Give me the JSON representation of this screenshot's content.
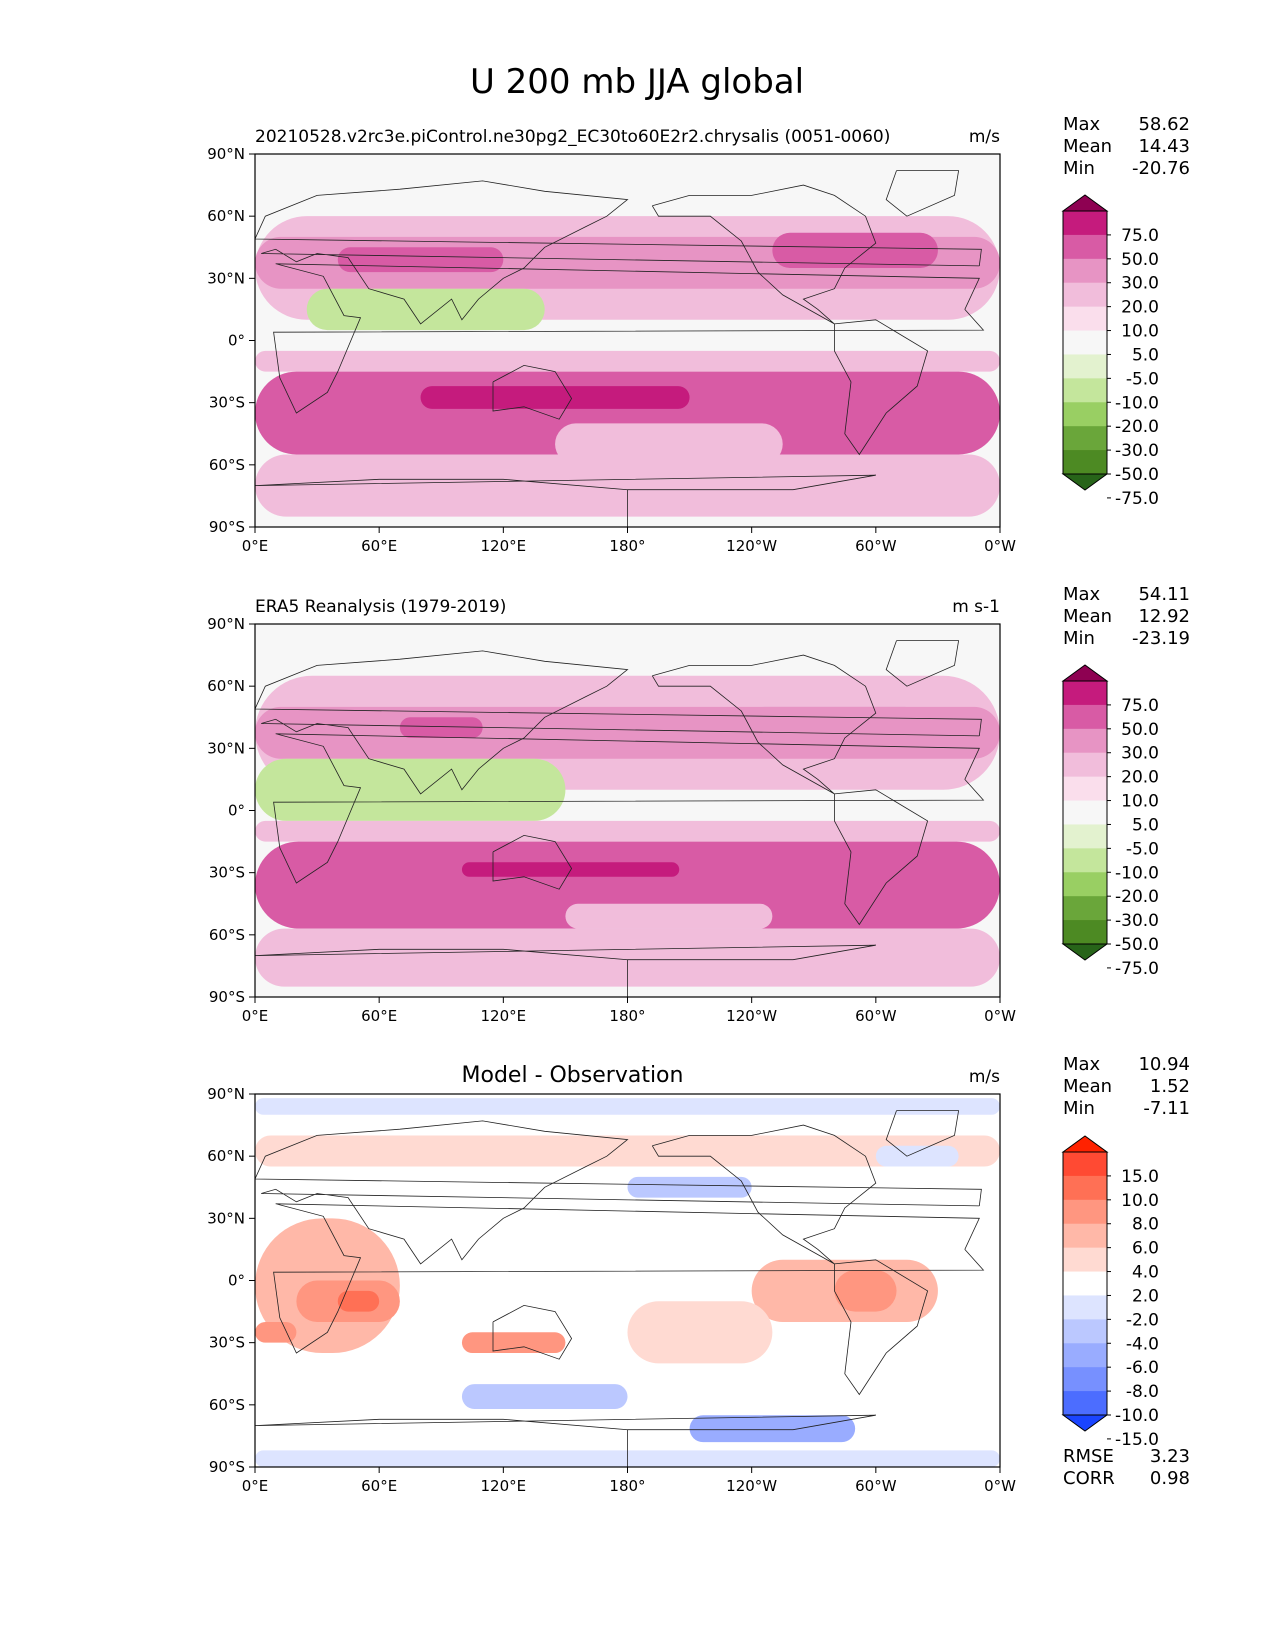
{
  "figure_title": "U 200 mb JJA global",
  "chart_data": [
    {
      "type": "heatmap",
      "title": "20210528.v2rc3e.piControl.ne30pg2_EC30to60E2r2.chrysalis (0051-0060)",
      "units": "m/s",
      "stats": [
        {
          "label": "Max",
          "value": "58.62"
        },
        {
          "label": "Mean",
          "value": "14.43"
        },
        {
          "label": "Min",
          "value": "-20.76"
        }
      ],
      "colorbar": {
        "levels": [
          "75.0",
          "50.0",
          "30.0",
          "20.0",
          "10.0",
          "5.0",
          "-5.0",
          "-10.0",
          "-20.0",
          "-30.0",
          "-50.0",
          "-75.0"
        ],
        "colors": [
          "#8e0152",
          "#c51b7d",
          "#d85ba5",
          "#e794c4",
          "#f1bddb",
          "#fadeec",
          "#f7f7f7",
          "#e3f2cf",
          "#c4e69c",
          "#99cf63",
          "#6aa63a",
          "#4d8a23",
          "#276419"
        ]
      },
      "xticks": [
        "0°E",
        "60°E",
        "120°E",
        "180°",
        "120°W",
        "60°W",
        "0°W"
      ],
      "yticks": [
        "90°N",
        "60°N",
        "30°N",
        "0°",
        "30°S",
        "60°S",
        "90°S"
      ],
      "xlim": [
        0,
        360
      ],
      "ylim": [
        -90,
        90
      ],
      "regions": [
        {
          "lon": [
            0,
            360
          ],
          "lat": [
            10,
            60
          ],
          "level": 4
        },
        {
          "lon": [
            0,
            360
          ],
          "lat": [
            25,
            50
          ],
          "level": 3
        },
        {
          "lon": [
            40,
            120
          ],
          "lat": [
            33,
            45
          ],
          "level": 2
        },
        {
          "lon": [
            250,
            330
          ],
          "lat": [
            35,
            52
          ],
          "level": 2
        },
        {
          "lon": [
            25,
            140
          ],
          "lat": [
            5,
            25
          ],
          "level": 8
        },
        {
          "lon": [
            0,
            360
          ],
          "lat": [
            -15,
            -5
          ],
          "level": 4
        },
        {
          "lon": [
            0,
            360
          ],
          "lat": [
            -55,
            -15
          ],
          "level": 2
        },
        {
          "lon": [
            80,
            210
          ],
          "lat": [
            -33,
            -22
          ],
          "level": 1
        },
        {
          "lon": [
            145,
            255
          ],
          "lat": [
            -60,
            -40
          ],
          "level": 4
        },
        {
          "lon": [
            0,
            360
          ],
          "lat": [
            -85,
            -55
          ],
          "level": 4
        }
      ]
    },
    {
      "type": "heatmap",
      "title": "ERA5 Reanalysis (1979-2019)",
      "units": "m s-1",
      "stats": [
        {
          "label": "Max",
          "value": "54.11"
        },
        {
          "label": "Mean",
          "value": "12.92"
        },
        {
          "label": "Min",
          "value": "-23.19"
        }
      ],
      "colorbar": {
        "levels": [
          "75.0",
          "50.0",
          "30.0",
          "20.0",
          "10.0",
          "5.0",
          "-5.0",
          "-10.0",
          "-20.0",
          "-30.0",
          "-50.0",
          "-75.0"
        ],
        "colors": [
          "#8e0152",
          "#c51b7d",
          "#d85ba5",
          "#e794c4",
          "#f1bddb",
          "#fadeec",
          "#f7f7f7",
          "#e3f2cf",
          "#c4e69c",
          "#99cf63",
          "#6aa63a",
          "#4d8a23",
          "#276419"
        ]
      },
      "xticks": [
        "0°E",
        "60°E",
        "120°E",
        "180°",
        "120°W",
        "60°W",
        "0°W"
      ],
      "yticks": [
        "90°N",
        "60°N",
        "30°N",
        "0°",
        "30°S",
        "60°S",
        "90°S"
      ],
      "xlim": [
        0,
        360
      ],
      "ylim": [
        -90,
        90
      ],
      "regions": [
        {
          "lon": [
            0,
            360
          ],
          "lat": [
            10,
            65
          ],
          "level": 4
        },
        {
          "lon": [
            0,
            360
          ],
          "lat": [
            25,
            50
          ],
          "level": 3
        },
        {
          "lon": [
            70,
            110
          ],
          "lat": [
            35,
            45
          ],
          "level": 2
        },
        {
          "lon": [
            240,
            320
          ],
          "lat": [
            38,
            50
          ],
          "level": 3
        },
        {
          "lon": [
            0,
            150
          ],
          "lat": [
            -5,
            25
          ],
          "level": 8
        },
        {
          "lon": [
            0,
            360
          ],
          "lat": [
            -15,
            -5
          ],
          "level": 4
        },
        {
          "lon": [
            0,
            360
          ],
          "lat": [
            -57,
            -15
          ],
          "level": 2
        },
        {
          "lon": [
            100,
            205
          ],
          "lat": [
            -32,
            -25
          ],
          "level": 1
        },
        {
          "lon": [
            150,
            250
          ],
          "lat": [
            -57,
            -45
          ],
          "level": 4
        },
        {
          "lon": [
            0,
            360
          ],
          "lat": [
            -85,
            -57
          ],
          "level": 4
        }
      ]
    },
    {
      "type": "heatmap",
      "title": "Model - Observation",
      "units": "m/s",
      "stats": [
        {
          "label": "Max",
          "value": "10.94"
        },
        {
          "label": "Mean",
          "value": "1.52"
        },
        {
          "label": "Min",
          "value": "-7.11"
        }
      ],
      "extra_stats": [
        {
          "label": "RMSE",
          "value": "3.23"
        },
        {
          "label": "CORR",
          "value": "0.98"
        }
      ],
      "colorbar": {
        "levels": [
          "15.0",
          "10.0",
          "8.0",
          "6.0",
          "4.0",
          "2.0",
          "-2.0",
          "-4.0",
          "-6.0",
          "-8.0",
          "-10.0",
          "-15.0"
        ],
        "colors": [
          "#ff2200",
          "#ff4a33",
          "#ff7055",
          "#ff9680",
          "#ffb8a8",
          "#ffdad2",
          "#ffffff",
          "#dde4ff",
          "#bbc8ff",
          "#99acff",
          "#7790ff",
          "#4c6dff",
          "#1a44ff"
        ]
      },
      "xticks": [
        "0°E",
        "60°E",
        "120°E",
        "180°",
        "120°W",
        "60°W",
        "0°W"
      ],
      "yticks": [
        "90°N",
        "60°N",
        "30°N",
        "0°",
        "30°S",
        "60°S",
        "90°S"
      ],
      "xlim": [
        0,
        360
      ],
      "ylim": [
        -90,
        90
      ],
      "regions": [
        {
          "lon": [
            0,
            360
          ],
          "lat": [
            80,
            88
          ],
          "level": 7
        },
        {
          "lon": [
            0,
            360
          ],
          "lat": [
            55,
            70
          ],
          "level": 5
        },
        {
          "lon": [
            0,
            70
          ],
          "lat": [
            -35,
            30
          ],
          "level": 4
        },
        {
          "lon": [
            20,
            70
          ],
          "lat": [
            -20,
            0
          ],
          "level": 3
        },
        {
          "lon": [
            40,
            60
          ],
          "lat": [
            -15,
            -5
          ],
          "level": 2
        },
        {
          "lon": [
            240,
            330
          ],
          "lat": [
            -20,
            10
          ],
          "level": 4
        },
        {
          "lon": [
            280,
            310
          ],
          "lat": [
            -15,
            5
          ],
          "level": 3
        },
        {
          "lon": [
            0,
            20
          ],
          "lat": [
            -30,
            -20
          ],
          "level": 3
        },
        {
          "lon": [
            100,
            150
          ],
          "lat": [
            -35,
            -25
          ],
          "level": 3
        },
        {
          "lon": [
            180,
            250
          ],
          "lat": [
            -40,
            -10
          ],
          "level": 5
        },
        {
          "lon": [
            100,
            180
          ],
          "lat": [
            -62,
            -50
          ],
          "level": 8
        },
        {
          "lon": [
            210,
            290
          ],
          "lat": [
            -78,
            -65
          ],
          "level": 9
        },
        {
          "lon": [
            0,
            360
          ],
          "lat": [
            -90,
            -82
          ],
          "level": 7
        },
        {
          "lon": [
            180,
            240
          ],
          "lat": [
            40,
            50
          ],
          "level": 8
        },
        {
          "lon": [
            300,
            340
          ],
          "lat": [
            55,
            65
          ],
          "level": 7
        }
      ]
    }
  ]
}
